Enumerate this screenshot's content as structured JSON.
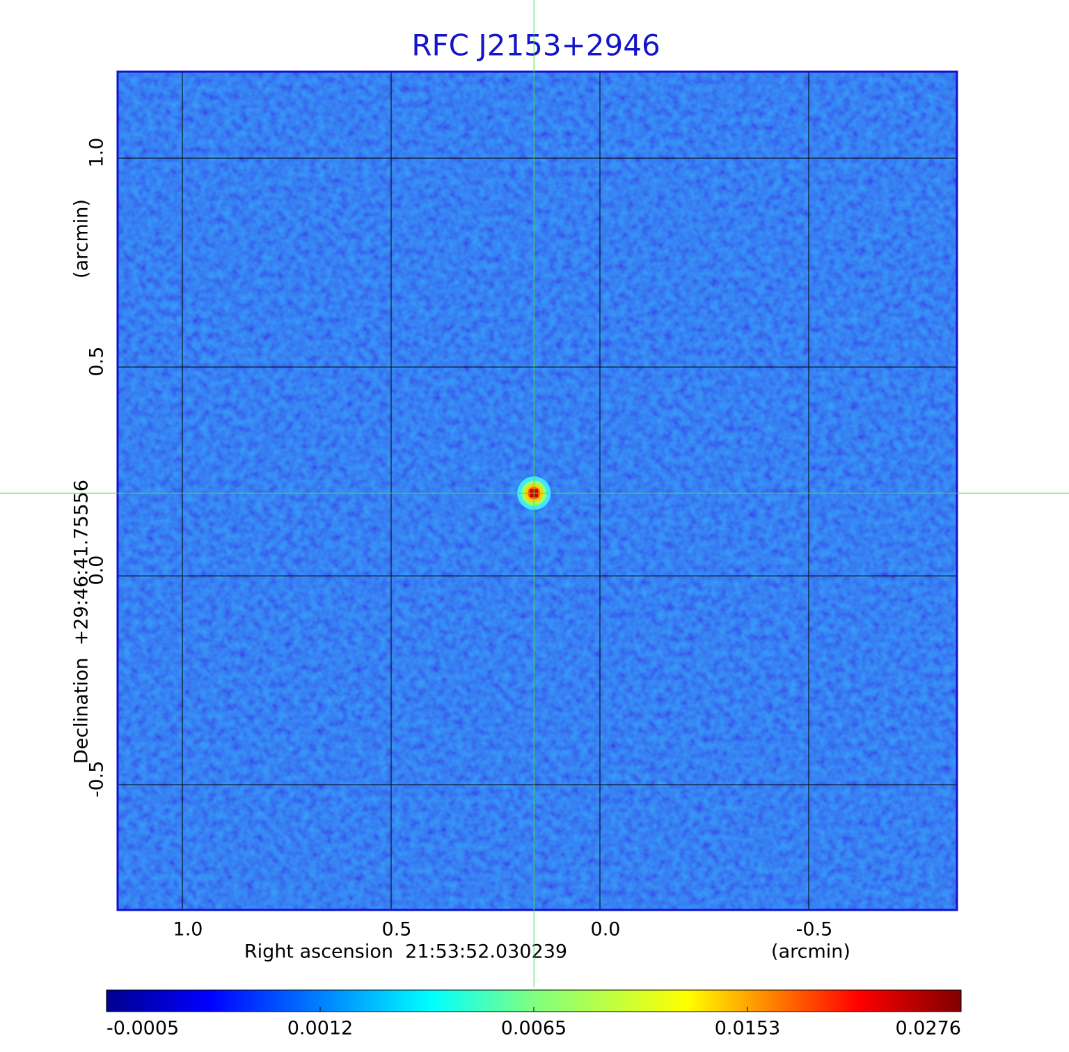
{
  "chart_data": {
    "type": "image",
    "title": "RFC J2153+2946",
    "x_label": "Right ascension  21:53:52.030239",
    "x_unit": "(arcmin)",
    "y_label": "Declination  +29:46:41.75556",
    "y_unit": "(arcmin)",
    "xlim": [
      1.155,
      -0.855
    ],
    "ylim": [
      -0.8,
      1.207
    ],
    "xticks": [
      {
        "value": 1,
        "label": "1.0"
      },
      0.5,
      {
        "value": 0,
        "label": "0.0"
      },
      -0.5
    ],
    "yticks": [
      -0.5,
      {
        "value": 0,
        "label": "0.0"
      },
      0.5,
      {
        "value": 1,
        "label": "1.0"
      }
    ],
    "grid": true,
    "source": {
      "x": 0.158,
      "y": 0.198,
      "peak": 0.0276
    },
    "colorbar_ticks": [
      -0.0005,
      0.0012,
      0.0065,
      0.0153,
      0.0276
    ]
  }
}
